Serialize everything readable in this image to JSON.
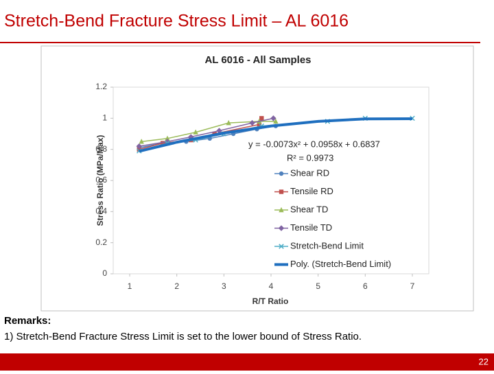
{
  "slide": {
    "title": "Stretch-Bend Fracture Stress Limit – AL 6016",
    "remarks_heading": "Remarks:",
    "remarks": [
      "1)  Stretch-Bend Fracture Stress Limit is set to the lower bound of Stress Ratio."
    ],
    "page_number": "22"
  },
  "chart_data": {
    "type": "line",
    "title": "AL 6016 - All Samples",
    "x_label": "R/T Ratio",
    "y_label": "Stress Ratio (MPa/Max)",
    "annotations": [
      "y = -0.0073x² + 0.0958x + 0.6837",
      "R² = 0.9973"
    ],
    "xlim": [
      0.65,
      7.35
    ],
    "xticks": [
      1,
      2,
      3,
      4,
      5,
      6,
      7
    ],
    "ylim": [
      0,
      1.2
    ],
    "yticks": [
      0,
      0.2,
      0.4,
      0.6,
      0.8,
      1,
      1.2
    ],
    "grid": false,
    "legend": "right",
    "series": [
      {
        "name": "Shear RD",
        "color": "#4f81bd",
        "marker": "circle",
        "x": [
          1.2,
          1.7,
          2.2,
          2.7,
          3.2,
          3.7,
          4.1
        ],
        "values": [
          0.81,
          0.84,
          0.85,
          0.87,
          0.9,
          0.93,
          0.95
        ]
      },
      {
        "name": "Tensile RD",
        "color": "#c0504d",
        "marker": "square",
        "x": [
          1.2,
          1.7,
          2.3,
          2.8,
          3.75,
          3.8
        ],
        "values": [
          0.8,
          0.84,
          0.86,
          0.9,
          0.96,
          1.0
        ]
      },
      {
        "name": "Shear TD",
        "color": "#9bbb59",
        "marker": "triangle",
        "x": [
          1.25,
          1.8,
          2.4,
          3.1,
          3.75,
          4.1
        ],
        "values": [
          0.85,
          0.87,
          0.91,
          0.97,
          0.98,
          0.98
        ]
      },
      {
        "name": "Tensile TD",
        "color": "#8064a2",
        "marker": "diamond",
        "x": [
          1.2,
          1.8,
          2.3,
          2.9,
          3.6,
          4.05
        ],
        "values": [
          0.82,
          0.85,
          0.88,
          0.92,
          0.97,
          1.0
        ]
      },
      {
        "name": "Stretch-Bend Limit",
        "color": "#4bacc6",
        "marker": "x",
        "x": [
          1.2,
          1.8,
          2.4,
          3.0,
          3.8,
          5.2,
          6.0,
          7.0
        ],
        "values": [
          0.79,
          0.84,
          0.86,
          0.9,
          0.95,
          0.98,
          1.0,
          1.0
        ]
      },
      {
        "name": "Poly. (Stretch-Bend Limit)",
        "color": "#1f6fbf",
        "marker": "none",
        "x": [
          1.2,
          2,
          3,
          4,
          5,
          6,
          7
        ],
        "values": [
          0.788,
          0.846,
          0.905,
          0.95,
          0.98,
          0.996,
          0.997
        ]
      }
    ]
  }
}
